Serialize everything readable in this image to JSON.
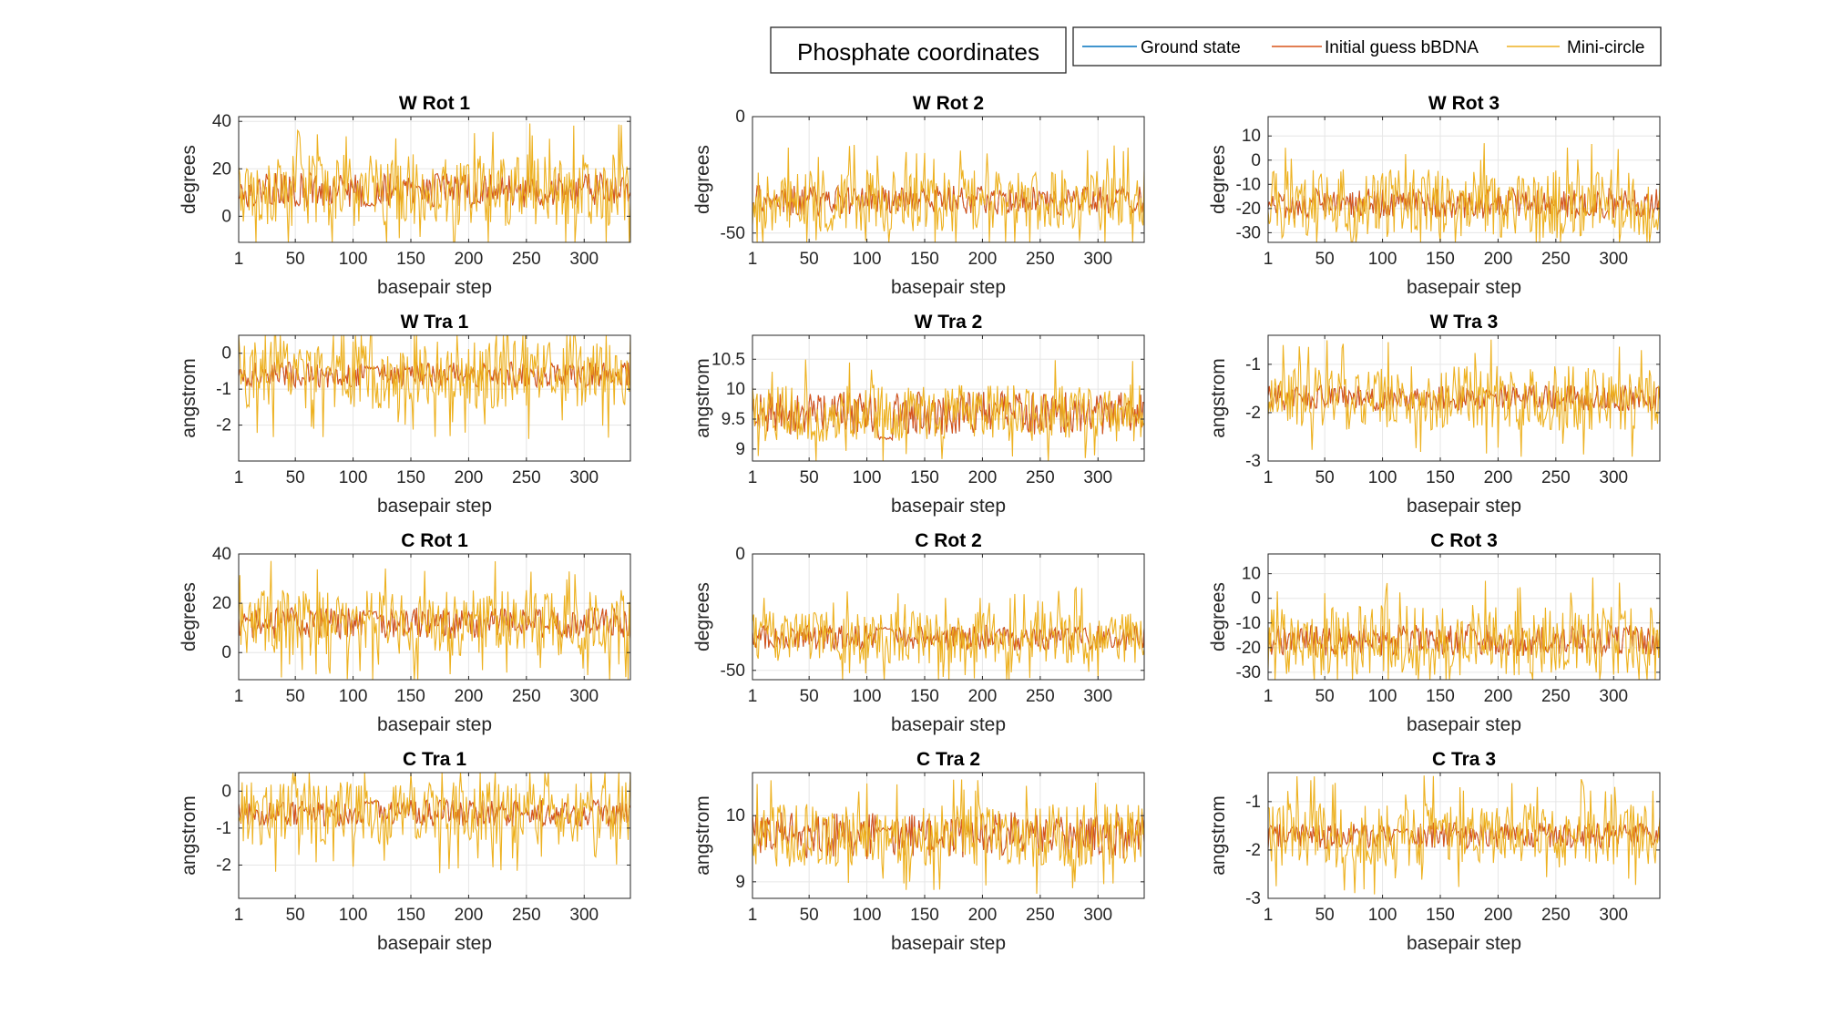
{
  "figure": {
    "title": "Phosphate coordinates",
    "legend": {
      "placement": "top-right",
      "entries": [
        {
          "label": "Ground state",
          "color": "#0072BD"
        },
        {
          "label": "Initial guess bBDNA",
          "color": "#D95319"
        },
        {
          "label": "Mini-circle",
          "color": "#EDB120"
        }
      ]
    }
  },
  "chart_data": [
    {
      "type": "line",
      "title": "W Rot 1",
      "xlabel": "basepair step",
      "ylabel": "degrees",
      "xlim": [
        1,
        340
      ],
      "ylim": [
        -11,
        42
      ],
      "xticks": [
        1,
        50,
        100,
        150,
        200,
        250,
        300
      ],
      "yticks": [
        0,
        20,
        40
      ],
      "grid": true,
      "baseline": 11,
      "red_spread": 8,
      "yellow_spread": 16,
      "flat_segment": [
        110,
        120,
        5
      ]
    },
    {
      "type": "line",
      "title": "W Rot 2",
      "xlabel": "basepair step",
      "ylabel": "degrees",
      "xlim": [
        1,
        340
      ],
      "ylim": [
        -54,
        0
      ],
      "xticks": [
        1,
        50,
        100,
        150,
        200,
        250,
        300
      ],
      "yticks": [
        -50,
        0
      ],
      "grid": true,
      "baseline": -36,
      "red_spread": 7,
      "yellow_spread": 14,
      "flat_segment": null
    },
    {
      "type": "line",
      "title": "W Rot 3",
      "xlabel": "basepair step",
      "ylabel": "degrees",
      "xlim": [
        1,
        340
      ],
      "ylim": [
        -34,
        18
      ],
      "xticks": [
        1,
        50,
        100,
        150,
        200,
        250,
        300
      ],
      "yticks": [
        -30,
        -20,
        -10,
        0,
        10
      ],
      "grid": true,
      "baseline": -18,
      "red_spread": 7,
      "yellow_spread": 15,
      "flat_segment": null
    },
    {
      "type": "line",
      "title": "W Tra 1",
      "xlabel": "basepair step",
      "ylabel": "angstrom",
      "xlim": [
        1,
        340
      ],
      "ylim": [
        -3,
        0.5
      ],
      "xticks": [
        1,
        50,
        100,
        150,
        200,
        250,
        300
      ],
      "yticks": [
        -2,
        -1,
        0
      ],
      "grid": true,
      "baseline": -0.6,
      "red_spread": 0.4,
      "yellow_spread": 1.0,
      "flat_segment": [
        110,
        122,
        -0.4
      ]
    },
    {
      "type": "line",
      "title": "W Tra 2",
      "xlabel": "basepair step",
      "ylabel": "angstrom",
      "xlim": [
        1,
        340
      ],
      "ylim": [
        8.8,
        10.9
      ],
      "xticks": [
        1,
        50,
        100,
        150,
        200,
        250,
        300
      ],
      "yticks": [
        9,
        9.5,
        10,
        10.5
      ],
      "grid": true,
      "baseline": 9.6,
      "red_spread": 0.4,
      "yellow_spread": 0.5,
      "flat_segment": [
        110,
        122,
        9.2
      ]
    },
    {
      "type": "line",
      "title": "W Tra 3",
      "xlabel": "basepair step",
      "ylabel": "angstrom",
      "xlim": [
        1,
        340
      ],
      "ylim": [
        -3,
        -0.4
      ],
      "xticks": [
        1,
        50,
        100,
        150,
        200,
        250,
        300
      ],
      "yticks": [
        -3,
        -2,
        -1
      ],
      "grid": true,
      "baseline": -1.7,
      "red_spread": 0.3,
      "yellow_spread": 0.7,
      "flat_segment": null
    },
    {
      "type": "line",
      "title": "C Rot 1",
      "xlabel": "basepair step",
      "ylabel": "degrees",
      "xlim": [
        1,
        340
      ],
      "ylim": [
        -11,
        40
      ],
      "xticks": [
        1,
        50,
        100,
        150,
        200,
        250,
        300
      ],
      "yticks": [
        0,
        20,
        40
      ],
      "grid": true,
      "baseline": 12,
      "red_spread": 7,
      "yellow_spread": 14,
      "flat_segment": [
        110,
        120,
        16
      ]
    },
    {
      "type": "line",
      "title": "C Rot 2",
      "xlabel": "basepair step",
      "ylabel": "degrees",
      "xlim": [
        1,
        340
      ],
      "ylim": [
        -54,
        0
      ],
      "xticks": [
        1,
        50,
        100,
        150,
        200,
        250,
        300
      ],
      "yticks": [
        -50,
        0
      ],
      "grid": true,
      "baseline": -36,
      "red_spread": 6,
      "yellow_spread": 12,
      "flat_segment": [
        108,
        122,
        -32
      ]
    },
    {
      "type": "line",
      "title": "C Rot 3",
      "xlabel": "basepair step",
      "ylabel": "degrees",
      "xlim": [
        1,
        340
      ],
      "ylim": [
        -33,
        18
      ],
      "xticks": [
        1,
        50,
        100,
        150,
        200,
        250,
        300
      ],
      "yticks": [
        -30,
        -20,
        -10,
        0,
        10
      ],
      "grid": true,
      "baseline": -17,
      "red_spread": 7,
      "yellow_spread": 15,
      "flat_segment": null
    },
    {
      "type": "line",
      "title": "C Tra 1",
      "xlabel": "basepair step",
      "ylabel": "angstrom",
      "xlim": [
        1,
        340
      ],
      "ylim": [
        -2.9,
        0.5
      ],
      "xticks": [
        1,
        50,
        100,
        150,
        200,
        250,
        300
      ],
      "yticks": [
        -2,
        -1,
        0
      ],
      "grid": true,
      "baseline": -0.6,
      "red_spread": 0.4,
      "yellow_spread": 0.9,
      "flat_segment": [
        110,
        122,
        -0.3
      ]
    },
    {
      "type": "line",
      "title": "C Tra 2",
      "xlabel": "basepair step",
      "ylabel": "angstrom",
      "xlim": [
        1,
        340
      ],
      "ylim": [
        8.75,
        10.65
      ],
      "xticks": [
        1,
        50,
        100,
        150,
        200,
        250,
        300
      ],
      "yticks": [
        9,
        10
      ],
      "grid": true,
      "baseline": 9.7,
      "red_spread": 0.4,
      "yellow_spread": 0.5,
      "flat_segment": [
        108,
        122,
        9.8
      ]
    },
    {
      "type": "line",
      "title": "C Tra 3",
      "xlabel": "basepair step",
      "ylabel": "angstrom",
      "xlim": [
        1,
        340
      ],
      "ylim": [
        -3,
        -0.4
      ],
      "xticks": [
        1,
        50,
        100,
        150,
        200,
        250,
        300
      ],
      "yticks": [
        -3,
        -2,
        -1
      ],
      "grid": true,
      "baseline": -1.7,
      "red_spread": 0.3,
      "yellow_spread": 0.7,
      "flat_segment": [
        110,
        122,
        -1.6
      ]
    }
  ]
}
